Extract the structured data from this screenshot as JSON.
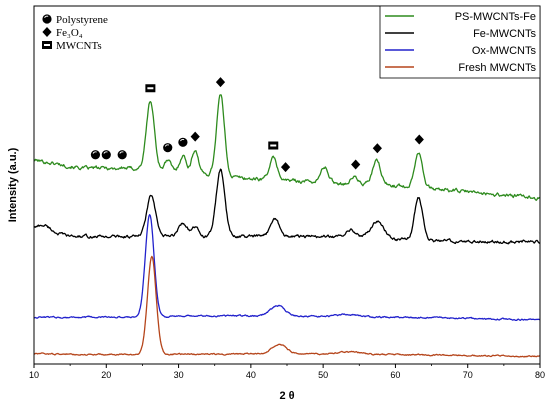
{
  "chart_data": {
    "type": "line",
    "xlabel": "2 θ",
    "ylabel": "Intensity (a.u.)",
    "xlim": [
      10,
      80
    ],
    "x_ticks": [
      10,
      20,
      30,
      40,
      50,
      60,
      70,
      80
    ],
    "legend_position": "top-right",
    "series": [
      {
        "name": "PS-MWCNTs-Fe",
        "color": "#2e8b1e",
        "offset": 240,
        "peaks": [
          [
            18.5,
            0.25,
            0.9
          ],
          [
            20.0,
            0.3,
            0.9
          ],
          [
            22.2,
            0.35,
            0.9
          ],
          [
            26.1,
            0.55,
            80
          ],
          [
            28.5,
            0.45,
            12
          ],
          [
            30.6,
            0.45,
            20
          ],
          [
            32.3,
            0.45,
            28
          ],
          [
            35.8,
            0.55,
            95
          ],
          [
            43.1,
            0.55,
            25
          ],
          [
            50.2,
            0.5,
            18
          ],
          [
            54.3,
            0.45,
            8
          ],
          [
            57.4,
            0.55,
            28
          ],
          [
            63.2,
            0.55,
            42
          ]
        ],
        "baseline": [
          [
            10,
            0
          ],
          [
            17,
            -10
          ],
          [
            25,
            -10
          ],
          [
            40,
            -22
          ],
          [
            60,
            -30
          ],
          [
            80,
            -45
          ]
        ],
        "noise": 3.2
      },
      {
        "name": "Fe-MWCNTs",
        "color": "#000000",
        "offset": 150,
        "peaks": [
          [
            11.5,
            0.8,
            6
          ],
          [
            26.2,
            0.6,
            48
          ],
          [
            30.6,
            0.6,
            16
          ],
          [
            32.3,
            0.5,
            10
          ],
          [
            35.8,
            0.6,
            78
          ],
          [
            43.3,
            0.6,
            22
          ],
          [
            53.8,
            0.7,
            10
          ],
          [
            57.5,
            0.9,
            20
          ],
          [
            63.2,
            0.55,
            50
          ]
        ],
        "baseline": [
          [
            10,
            10
          ],
          [
            15,
            0
          ],
          [
            30,
            0
          ],
          [
            50,
            0
          ],
          [
            70,
            -6
          ],
          [
            80,
            -6
          ]
        ],
        "noise": 2.6
      },
      {
        "name": "Ox-MWCNTs",
        "color": "#2222cc",
        "offset": 55,
        "peaks": [
          [
            26.0,
            0.6,
            120
          ],
          [
            43.7,
            1.0,
            12
          ],
          [
            53.5,
            1.2,
            3
          ]
        ],
        "baseline": [
          [
            10,
            0
          ],
          [
            20,
            0
          ],
          [
            40,
            2
          ],
          [
            60,
            0
          ],
          [
            80,
            -3
          ]
        ],
        "noise": 1.4
      },
      {
        "name": "Fresh MWCNTs",
        "color": "#b5451b",
        "offset": 12,
        "peaks": [
          [
            26.3,
            0.6,
            115
          ],
          [
            43.9,
            1.0,
            12
          ],
          [
            53.8,
            1.5,
            3
          ]
        ],
        "baseline": [
          [
            10,
            0
          ],
          [
            20,
            -1
          ],
          [
            40,
            0
          ],
          [
            60,
            -1
          ],
          [
            80,
            -3
          ]
        ],
        "noise": 1.2
      }
    ],
    "marker_legend": [
      {
        "shape": "circle",
        "label": "Polystyrene"
      },
      {
        "shape": "diamond",
        "label": "Fe₃O₄"
      },
      {
        "shape": "square",
        "label": "MWCNTs"
      }
    ],
    "annotations": [
      {
        "shape": "circle",
        "x": 18.5
      },
      {
        "shape": "circle",
        "x": 20.0
      },
      {
        "shape": "circle",
        "x": 22.2
      },
      {
        "shape": "square",
        "x": 26.1
      },
      {
        "shape": "circle",
        "x": 28.5
      },
      {
        "shape": "circle",
        "x": 30.6
      },
      {
        "shape": "diamond",
        "x": 32.3
      },
      {
        "shape": "diamond",
        "x": 35.8
      },
      {
        "shape": "square",
        "x": 43.1
      },
      {
        "shape": "diamond",
        "x": 44.8
      },
      {
        "shape": "diamond",
        "x": 54.5
      },
      {
        "shape": "diamond",
        "x": 57.5
      },
      {
        "shape": "diamond",
        "x": 63.3
      }
    ]
  }
}
